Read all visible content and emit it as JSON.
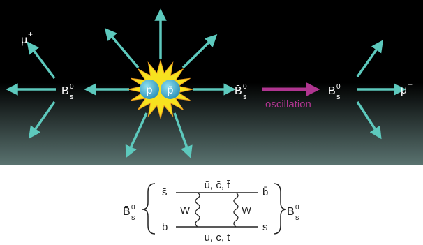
{
  "collision": {
    "proton": "p",
    "antiproton": "p̄"
  },
  "particles": {
    "bs_left": {
      "main": "B",
      "sup": "0",
      "sub": "s"
    },
    "bsbar_center": {
      "main": "B̄",
      "sup": "0",
      "sub": "s"
    },
    "bs_right": {
      "main": "B",
      "sup": "0",
      "sub": "s"
    },
    "mu_left": {
      "main": "μ",
      "sup": "+"
    },
    "mu_right": {
      "main": "μ",
      "sup": "+"
    }
  },
  "oscillation_label": "oscillation",
  "box_diagram": {
    "left_meson": {
      "main": "B̄",
      "sup": "0",
      "sub": "s"
    },
    "right_meson": {
      "main": "B",
      "sup": "0",
      "sub": "s"
    },
    "top_left_quark": "s̄",
    "bottom_left_quark": "b",
    "top_right_quark": "b̄",
    "bottom_right_quark": "s",
    "top_internal": "ū, c̄, t̄",
    "bottom_internal": "u, c, t",
    "boson_left": "W",
    "boson_right": "W"
  },
  "colors": {
    "arrow": "#5dc9bd",
    "oscillation": "#b03590",
    "burst": "#f7e21f",
    "ball": "#4db4d8",
    "text_dark": "#222222"
  }
}
